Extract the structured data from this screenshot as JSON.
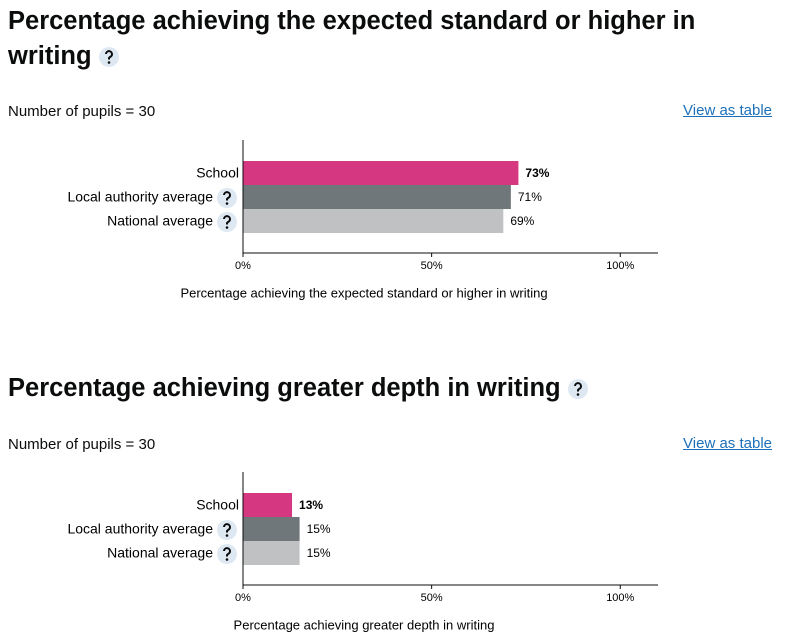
{
  "chart_data": [
    {
      "type": "bar",
      "title": "Percentage achieving the expected standard or higher in writing",
      "subtitle": "Number of pupils = 30",
      "link": "View as table",
      "categories": [
        "School",
        "Local authority average",
        "National average"
      ],
      "values": [
        73,
        71,
        69
      ],
      "value_labels": [
        "73%",
        "71%",
        "69%"
      ],
      "colors": [
        "#d53880",
        "#6f777b",
        "#bfc1c3"
      ],
      "xlim": [
        0,
        110
      ],
      "xticks": [
        {
          "value": 0,
          "label": "0%"
        },
        {
          "value": 50,
          "label": "50%"
        },
        {
          "value": 100,
          "label": "100%"
        }
      ],
      "xlabel": "Percentage achieving the expected standard or higher in writing"
    },
    {
      "type": "bar",
      "title": "Percentage achieving greater depth in writing",
      "subtitle": "Number of pupils = 30",
      "link": "View as table",
      "categories": [
        "School",
        "Local authority average",
        "National average"
      ],
      "values": [
        13,
        15,
        15
      ],
      "value_labels": [
        "13%",
        "15%",
        "15%"
      ],
      "colors": [
        "#d53880",
        "#6f777b",
        "#bfc1c3"
      ],
      "xlim": [
        0,
        110
      ],
      "xticks": [
        {
          "value": 0,
          "label": "0%"
        },
        {
          "value": 50,
          "label": "50%"
        },
        {
          "value": 100,
          "label": "100%"
        }
      ],
      "xlabel": "Percentage achieving greater depth in writing"
    }
  ]
}
